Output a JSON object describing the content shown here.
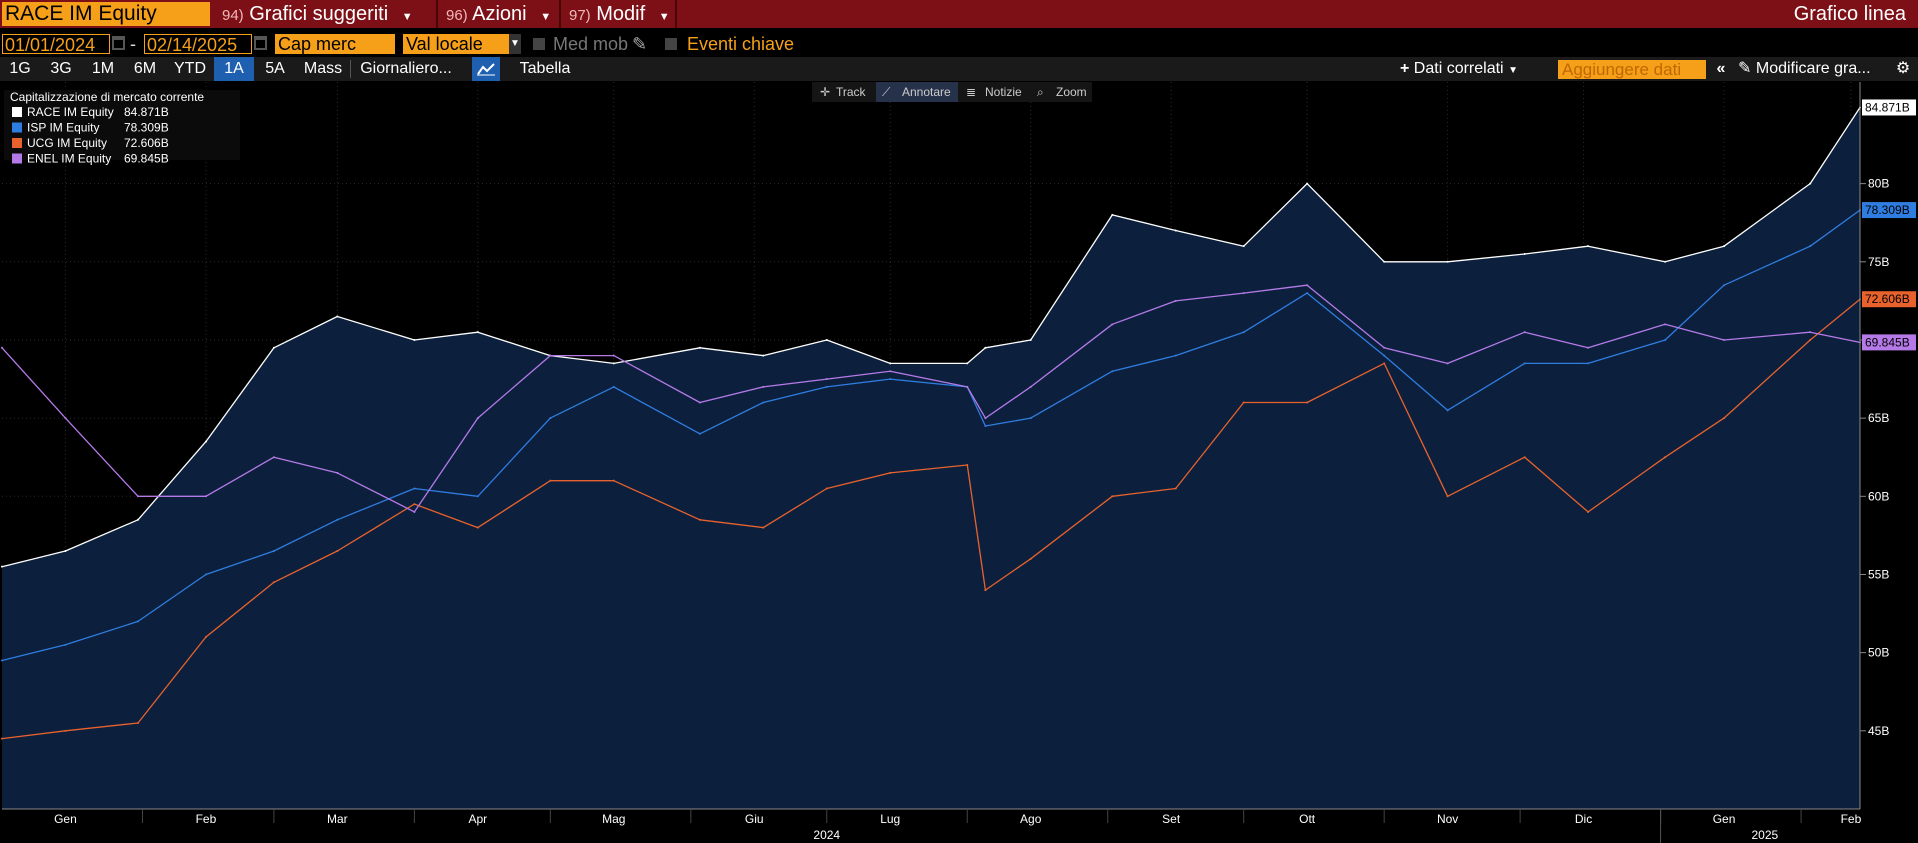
{
  "header": {
    "ticker": "RACE IM Equity",
    "menus": [
      {
        "num": "94)",
        "label": "Grafici suggeriti"
      },
      {
        "num": "96)",
        "label": "Azioni"
      },
      {
        "num": "97)",
        "label": "Modif"
      }
    ],
    "right_title": "Grafico linea"
  },
  "controls": {
    "start_date": "01/01/2024",
    "date_separator": "-",
    "end_date": "02/14/2025",
    "field": "Cap merc",
    "currency": "Val locale",
    "moving_avg": "Med mob",
    "key_events": "Eventi chiave"
  },
  "ranges": {
    "buttons": [
      "1G",
      "3G",
      "1M",
      "6M",
      "YTD",
      "1A",
      "5A",
      "Mass"
    ],
    "selected": "1A",
    "frequency": "Giornaliero...",
    "table": "Tabella",
    "related": "Dati correlati",
    "add_data": "Aggiungere dati",
    "modify": "Modificare gra..."
  },
  "chart_tools": [
    "Track",
    "Annotare",
    "Notizie",
    "Zoom"
  ],
  "chart_data": {
    "type": "line",
    "title": "Capitalizzazione di mercato corrente",
    "legend_position": "top-left",
    "grid": true,
    "ylim": [
      40,
      86.5
    ],
    "yticks": [
      "45B",
      "50B",
      "55B",
      "60B",
      "65B",
      "70B",
      "75B",
      "80B"
    ],
    "ytick_values": [
      45,
      50,
      55,
      60,
      65,
      70,
      75,
      80
    ],
    "xdomain": [
      "2024-01-01",
      "2025-02-14"
    ],
    "xticks": [
      {
        "label": "Gen",
        "date": "2024-01-15"
      },
      {
        "label": "Feb",
        "date": "2024-02-15"
      },
      {
        "label": "Mar",
        "date": "2024-03-15"
      },
      {
        "label": "Apr",
        "date": "2024-04-15"
      },
      {
        "label": "Mag",
        "date": "2024-05-15"
      },
      {
        "label": "Giu",
        "date": "2024-06-15"
      },
      {
        "label": "Lug",
        "date": "2024-07-15"
      },
      {
        "label": "Ago",
        "date": "2024-08-15"
      },
      {
        "label": "Set",
        "date": "2024-09-15"
      },
      {
        "label": "Ott",
        "date": "2024-10-15"
      },
      {
        "label": "Nov",
        "date": "2024-11-15"
      },
      {
        "label": "Dic",
        "date": "2024-12-15"
      },
      {
        "label": "Gen",
        "date": "2025-01-15"
      },
      {
        "label": "Feb",
        "date": "2025-02-12"
      }
    ],
    "years": [
      {
        "label": "2024",
        "date": "2024-07-01"
      },
      {
        "label": "2025",
        "date": "2025-01-24"
      }
    ],
    "x": [
      "2024-01-01",
      "2024-01-15",
      "2024-01-31",
      "2024-02-15",
      "2024-03-01",
      "2024-03-15",
      "2024-04-01",
      "2024-04-15",
      "2024-05-01",
      "2024-05-15",
      "2024-06-03",
      "2024-06-17",
      "2024-07-01",
      "2024-07-15",
      "2024-08-01",
      "2024-08-05",
      "2024-08-15",
      "2024-09-02",
      "2024-09-16",
      "2024-10-01",
      "2024-10-15",
      "2024-11-01",
      "2024-11-15",
      "2024-12-02",
      "2024-12-16",
      "2025-01-02",
      "2025-01-15",
      "2025-02-03",
      "2025-02-14"
    ],
    "series": [
      {
        "name": "RACE IM Equity",
        "last": "84.871B",
        "color": "#ffffff",
        "values": [
          55.5,
          56.5,
          58.5,
          63.5,
          69.5,
          71.5,
          70.0,
          70.5,
          69.0,
          68.5,
          69.5,
          69.0,
          70.0,
          68.5,
          68.5,
          69.5,
          70.0,
          78.0,
          77.0,
          76.0,
          80.0,
          75.0,
          75.0,
          75.5,
          76.0,
          75.0,
          76.0,
          80.0,
          84.871
        ]
      },
      {
        "name": "ISP IM Equity",
        "last": "78.309B",
        "color": "#2f7de0",
        "values": [
          49.5,
          50.5,
          52.0,
          55.0,
          56.5,
          58.5,
          60.5,
          60.0,
          65.0,
          67.0,
          64.0,
          66.0,
          67.0,
          67.5,
          67.0,
          64.5,
          65.0,
          68.0,
          69.0,
          70.5,
          73.0,
          69.0,
          65.5,
          68.5,
          68.5,
          70.0,
          73.5,
          76.0,
          78.309
        ]
      },
      {
        "name": "UCG IM Equity",
        "last": "72.606B",
        "color": "#e8622d",
        "values": [
          44.5,
          45.0,
          45.5,
          51.0,
          54.5,
          56.5,
          59.5,
          58.0,
          61.0,
          61.0,
          58.5,
          58.0,
          60.5,
          61.5,
          62.0,
          54.0,
          56.0,
          60.0,
          60.5,
          66.0,
          66.0,
          68.5,
          60.0,
          62.5,
          59.0,
          62.5,
          65.0,
          70.0,
          72.606
        ]
      },
      {
        "name": "ENEL IM Equity",
        "last": "69.845B",
        "color": "#b57ae8",
        "values": [
          69.5,
          65.0,
          60.0,
          60.0,
          62.5,
          61.5,
          59.0,
          65.0,
          69.0,
          69.0,
          66.0,
          67.0,
          67.5,
          68.0,
          67.0,
          65.0,
          67.0,
          71.0,
          72.5,
          73.0,
          73.5,
          69.5,
          68.5,
          70.5,
          69.5,
          71.0,
          70.0,
          70.5,
          69.845
        ]
      }
    ]
  }
}
